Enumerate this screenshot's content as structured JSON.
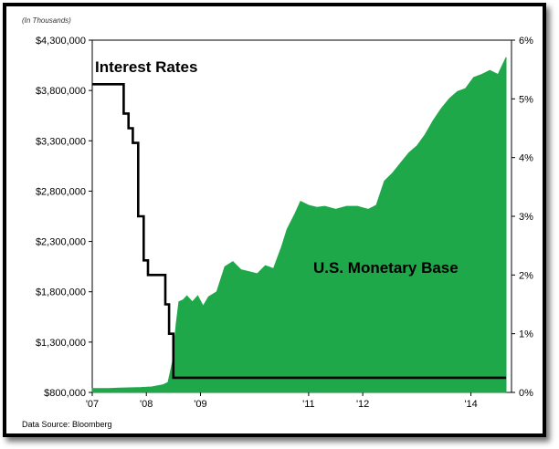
{
  "chart_data": {
    "type": "area",
    "units_note": "(In Thousands)",
    "source": "Data Source:  Bloomberg",
    "left_axis": {
      "ticks": [
        800000,
        1300000,
        1800000,
        2300000,
        2800000,
        3300000,
        3800000,
        4300000
      ],
      "tick_labels": [
        "$800,000",
        "$1,300,000",
        "$1,800,000",
        "$2,300,000",
        "$2,800,000",
        "$3,300,000",
        "$3,800,000",
        "$4,300,000"
      ],
      "ylim": [
        800000,
        4300000
      ]
    },
    "right_axis": {
      "ticks": [
        0,
        1,
        2,
        3,
        4,
        5,
        6
      ],
      "tick_labels": [
        "0%",
        "1%",
        "2%",
        "3%",
        "4%",
        "5%",
        "6%"
      ],
      "ylim": [
        0,
        6
      ]
    },
    "x_axis": {
      "xlim": [
        2007.0,
        2014.75
      ],
      "ticks": [
        2007.0,
        2008.0,
        2009.0,
        2011.0,
        2012.0,
        2014.0
      ],
      "tick_labels": [
        "'07",
        "'08",
        "'09",
        "'11",
        "'12",
        "'14"
      ]
    },
    "annotations": {
      "interest_rates": "Interest Rates",
      "monetary_base": "U.S. Monetary Base"
    },
    "series": [
      {
        "name": "U.S. Monetary Base",
        "axis": "left",
        "color": "#1fa84a",
        "x": [
          2007.0,
          2007.3,
          2007.6,
          2007.9,
          2008.1,
          2008.3,
          2008.4,
          2008.48,
          2008.55,
          2008.6,
          2008.68,
          2008.75,
          2008.85,
          2008.95,
          2009.05,
          2009.15,
          2009.3,
          2009.45,
          2009.6,
          2009.75,
          2009.9,
          2010.05,
          2010.2,
          2010.35,
          2010.5,
          2010.6,
          2010.75,
          2010.85,
          2011.0,
          2011.15,
          2011.3,
          2011.5,
          2011.7,
          2011.9,
          2012.1,
          2012.25,
          2012.4,
          2012.55,
          2012.7,
          2012.85,
          2013.0,
          2013.15,
          2013.3,
          2013.45,
          2013.6,
          2013.75,
          2013.9,
          2014.05,
          2014.2,
          2014.35,
          2014.5,
          2014.65
        ],
        "values": [
          840000,
          840000,
          845000,
          850000,
          855000,
          875000,
          900000,
          1100000,
          1480000,
          1700000,
          1720000,
          1760000,
          1700000,
          1760000,
          1660000,
          1750000,
          1800000,
          2050000,
          2100000,
          2020000,
          2000000,
          1980000,
          2060000,
          2030000,
          2250000,
          2420000,
          2580000,
          2700000,
          2660000,
          2640000,
          2650000,
          2620000,
          2650000,
          2650000,
          2620000,
          2660000,
          2900000,
          2980000,
          3080000,
          3180000,
          3250000,
          3360000,
          3500000,
          3620000,
          3720000,
          3790000,
          3820000,
          3930000,
          3960000,
          4000000,
          3960000,
          4130000
        ]
      },
      {
        "name": "Interest Rates",
        "axis": "right",
        "color": "#000000",
        "x": [
          2007.0,
          2007.58,
          2007.58,
          2007.67,
          2007.67,
          2007.75,
          2007.75,
          2007.85,
          2007.85,
          2007.95,
          2007.95,
          2008.03,
          2008.03,
          2008.08,
          2008.08,
          2008.35,
          2008.35,
          2008.42,
          2008.42,
          2008.5,
          2008.5,
          2014.65
        ],
        "values": [
          5.25,
          5.25,
          4.75,
          4.75,
          4.5,
          4.5,
          4.25,
          4.25,
          3.0,
          3.0,
          2.25,
          2.25,
          2.0,
          2.0,
          2.0,
          2.0,
          1.5,
          1.5,
          1.0,
          1.0,
          0.25,
          0.25
        ]
      }
    ]
  }
}
